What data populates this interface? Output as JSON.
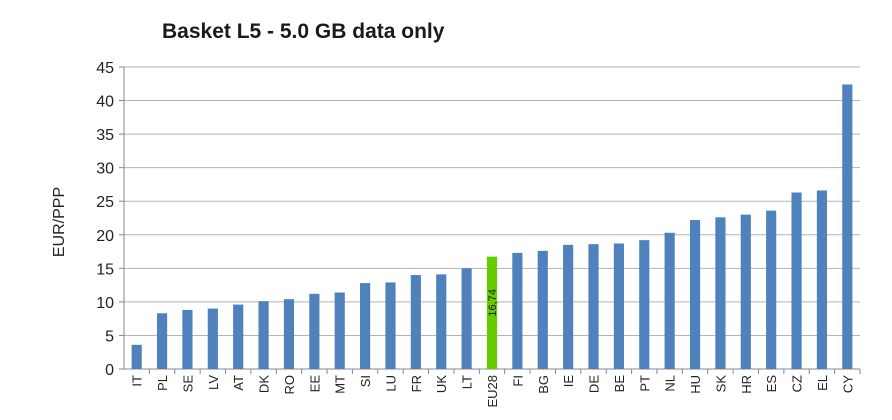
{
  "chart_data": {
    "type": "bar",
    "title": "Basket L5 - 5.0 GB data only",
    "xlabel": "",
    "ylabel": "EUR/PPP",
    "ylim": [
      0,
      45
    ],
    "yticks": [
      0,
      5,
      10,
      15,
      20,
      25,
      30,
      35,
      40,
      45
    ],
    "grid": true,
    "categories": [
      "IT",
      "PL",
      "SE",
      "LV",
      "AT",
      "DK",
      "RO",
      "EE",
      "MT",
      "SI",
      "LU",
      "FR",
      "UK",
      "LT",
      "EU28",
      "FI",
      "BG",
      "IE",
      "DE",
      "BE",
      "PT",
      "NL",
      "HU",
      "SK",
      "HR",
      "ES",
      "CZ",
      "EL",
      "CY"
    ],
    "values": [
      3.6,
      8.3,
      8.8,
      9.0,
      9.6,
      10.1,
      10.4,
      11.2,
      11.4,
      12.8,
      12.9,
      14.0,
      14.1,
      15.0,
      16.74,
      17.3,
      17.6,
      18.5,
      18.6,
      18.7,
      19.2,
      20.3,
      22.2,
      22.6,
      23.0,
      23.6,
      26.3,
      26.6,
      42.4
    ],
    "highlight_category": "EU28",
    "data_labels": [
      {
        "category": "EU28",
        "text": "16,74"
      }
    ],
    "colors": {
      "bar": "#4f81bd",
      "highlight": "#66cc00",
      "grid": "#b3b3b3",
      "axis": "#888888"
    }
  }
}
